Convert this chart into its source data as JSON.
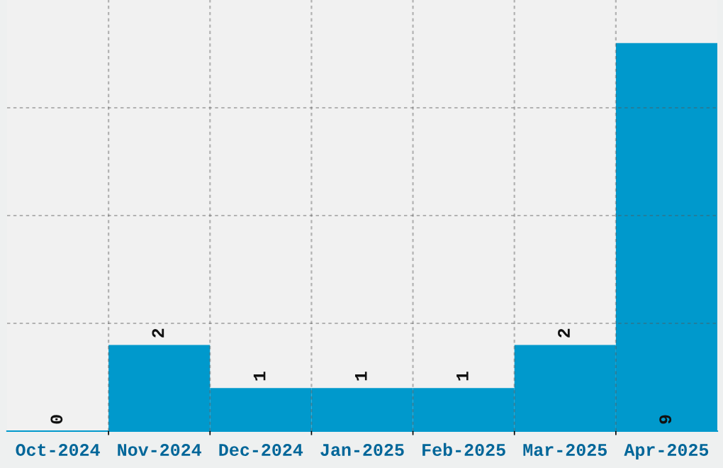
{
  "chart_data": {
    "type": "bar",
    "categories": [
      "Oct-2024",
      "Nov-2024",
      "Dec-2024",
      "Jan-2025",
      "Feb-2025",
      "Mar-2025",
      "Apr-2025"
    ],
    "values": [
      0,
      2,
      1,
      1,
      1,
      2,
      9
    ],
    "color": "#0099cc",
    "data_labels": true,
    "grid": true,
    "tick_labels": "x",
    "ylim": [
      0,
      10
    ],
    "yticks": [
      {
        "value": 2.5,
        "label": null
      },
      {
        "value": 5,
        "label": null
      },
      {
        "value": 7.5,
        "label": null
      }
    ]
  }
}
